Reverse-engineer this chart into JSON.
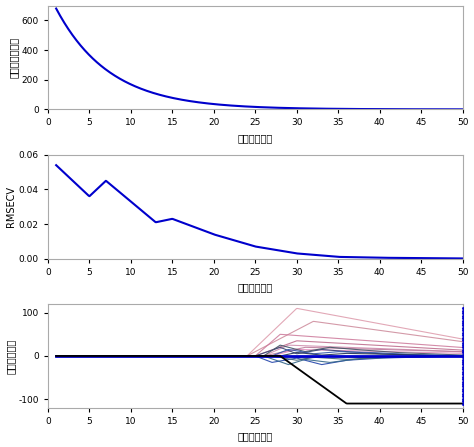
{
  "subplot1": {
    "xlabel": "采样运行次数",
    "ylabel": "采样变量的数量",
    "xlim": [
      0,
      50
    ],
    "ylim": [
      0,
      700
    ],
    "yticks": [
      0,
      200,
      400,
      600
    ],
    "xticks": [
      0,
      5,
      10,
      15,
      20,
      25,
      30,
      35,
      40,
      45,
      50
    ],
    "color": "#0000cc"
  },
  "subplot2": {
    "xlabel": "采样运行次数",
    "ylabel": "RMSECV",
    "xlim": [
      0,
      50
    ],
    "ylim": [
      0,
      0.06
    ],
    "yticks": [
      0,
      0.02,
      0.04,
      0.06
    ],
    "xticks": [
      0,
      5,
      10,
      15,
      20,
      25,
      30,
      35,
      40,
      45,
      50
    ],
    "color": "#0000cc"
  },
  "subplot3": {
    "xlabel": "采样运行次数",
    "ylabel": "回归系数路径",
    "xlim": [
      0,
      50
    ],
    "ylim": [
      -120,
      120
    ],
    "yticks": [
      -100,
      0,
      100
    ],
    "xticks": [
      0,
      5,
      10,
      15,
      20,
      25,
      30,
      35,
      40,
      45,
      50
    ],
    "main_color": "#0000cc"
  },
  "background_color": "#ffffff"
}
